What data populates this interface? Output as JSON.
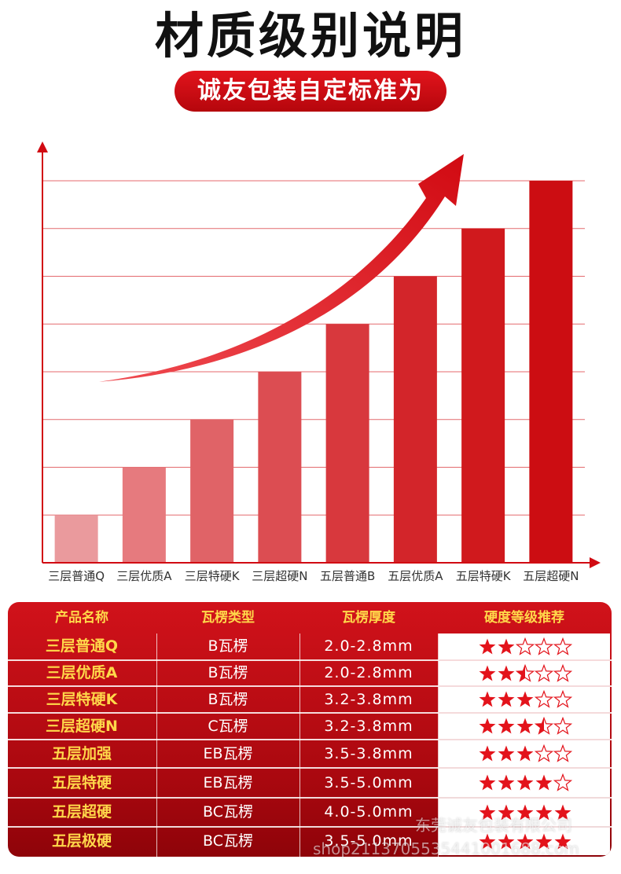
{
  "header": {
    "title": "材质级别说明",
    "subtitle": "诚友包装自定标准为"
  },
  "colors": {
    "accent": "#d10a12",
    "header_text": "#ffd84a",
    "star": "#e3131b"
  },
  "chart_data": {
    "type": "bar",
    "title": "",
    "xlabel": "",
    "ylabel": "",
    "categories": [
      "三层普通Q",
      "三层优质A",
      "三层特硬K",
      "三层超硬N",
      "五层普通B",
      "五层优质A",
      "五层特硬K",
      "五层超硬N"
    ],
    "values": [
      1,
      2,
      3,
      4,
      5,
      6,
      7,
      8
    ],
    "ylim": [
      0,
      8
    ],
    "grid": true,
    "legend": "none",
    "bar_colors": [
      "#ea9a9d",
      "#e67a7e",
      "#e06367",
      "#dc4d52",
      "#d8383d",
      "#d3252a",
      "#d0191d",
      "#cc0d12"
    ],
    "annotation": "rising-arrow"
  },
  "table": {
    "headers": [
      "产品名称",
      "瓦楞类型",
      "瓦楞厚度",
      "硬度等级推荐"
    ],
    "rows": [
      {
        "name": "三层普通Q",
        "flute": "B瓦楞",
        "thickness": "2.0-2.8mm",
        "stars": 2
      },
      {
        "name": "三层优质A",
        "flute": "B瓦楞",
        "thickness": "2.0-2.8mm",
        "stars": 2.5
      },
      {
        "name": "三层特硬K",
        "flute": "B瓦楞",
        "thickness": "3.2-3.8mm",
        "stars": 3
      },
      {
        "name": "三层超硬N",
        "flute": "C瓦楞",
        "thickness": "3.2-3.8mm",
        "stars": 3.5
      },
      {
        "name": "五层加强",
        "flute": "EB瓦楞",
        "thickness": "3.5-3.8mm",
        "stars": 3
      },
      {
        "name": "五层特硬",
        "flute": "EB瓦楞",
        "thickness": "3.5-5.0mm",
        "stars": 4
      },
      {
        "name": "五层超硬",
        "flute": "BC瓦楞",
        "thickness": "4.0-5.0mm",
        "stars": 5
      },
      {
        "name": "五层极硬",
        "flute": "BC瓦楞",
        "thickness": "3.5-5.0mm",
        "stars": 5
      }
    ]
  },
  "watermark": {
    "company": "东莞诚友包装有限公司",
    "url": "shop2113705535441001688.com"
  }
}
